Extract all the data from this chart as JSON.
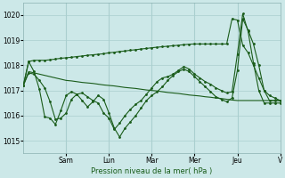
{
  "background_color": "#cce8e8",
  "grid_color": "#aacfcf",
  "line_color": "#1a5c1a",
  "xlabel": "Pression niveau de la mer( hPa )",
  "ylim": [
    1014.5,
    1020.5
  ],
  "yticks": [
    1015,
    1016,
    1017,
    1018,
    1019,
    1020
  ],
  "day_labels": [
    "Sam",
    "Lun",
    "Mar",
    "Mer",
    "Jeu",
    "V"
  ],
  "n_points": 49,
  "series1_high": [
    1017.2,
    1018.15,
    1018.2,
    1018.2,
    1018.2,
    1018.22,
    1018.25,
    1018.28,
    1018.3,
    1018.32,
    1018.35,
    1018.37,
    1018.4,
    1018.42,
    1018.44,
    1018.46,
    1018.5,
    1018.52,
    1018.55,
    1018.57,
    1018.6,
    1018.62,
    1018.65,
    1018.67,
    1018.7,
    1018.72,
    1018.74,
    1018.76,
    1018.78,
    1018.8,
    1018.82,
    1018.84,
    1018.85,
    1018.85,
    1018.85,
    1018.85,
    1018.85,
    1018.85,
    1018.85,
    1019.85,
    1019.8,
    1018.8,
    1018.5,
    1018.0,
    1017.5,
    1017.0,
    1016.8,
    1016.7,
    1016.6
  ],
  "series2_upper": [
    1017.2,
    1017.75,
    1017.7,
    1017.65,
    1017.6,
    1017.55,
    1017.5,
    1017.45,
    1017.4,
    1017.38,
    1017.35,
    1017.32,
    1017.3,
    1017.28,
    1017.25,
    1017.22,
    1017.2,
    1017.18,
    1017.15,
    1017.12,
    1017.1,
    1017.08,
    1017.05,
    1017.02,
    1017.0,
    1016.98,
    1016.95,
    1016.92,
    1016.9,
    1016.88,
    1016.85,
    1016.82,
    1016.8,
    1016.78,
    1016.75,
    1016.73,
    1016.7,
    1016.68,
    1016.65,
    1016.62,
    1016.6,
    1016.6,
    1016.6,
    1016.6,
    1016.6,
    1016.6,
    1016.6,
    1016.6,
    1016.6
  ],
  "series3_wavy": [
    1017.2,
    1018.15,
    1017.75,
    1017.05,
    1015.95,
    1015.9,
    1015.65,
    1016.2,
    1016.8,
    1016.95,
    1016.85,
    1016.6,
    1016.35,
    1016.55,
    1016.8,
    1016.65,
    1016.1,
    1015.5,
    1015.15,
    1015.5,
    1015.75,
    1016.0,
    1016.3,
    1016.6,
    1016.8,
    1016.95,
    1017.15,
    1017.4,
    1017.6,
    1017.75,
    1017.85,
    1017.75,
    1017.55,
    1017.35,
    1017.15,
    1016.95,
    1016.75,
    1016.65,
    1016.55,
    1016.7,
    1017.8,
    1019.85,
    1019.4,
    1018.85,
    1018.0,
    1017.0,
    1016.6,
    1016.6,
    1016.6
  ],
  "series4_decline": [
    1017.2,
    1017.7,
    1017.65,
    1017.4,
    1017.1,
    1016.55,
    1015.85,
    1015.9,
    1016.1,
    1016.65,
    1016.85,
    1016.9,
    1016.75,
    1016.6,
    1016.5,
    1016.1,
    1015.9,
    1015.45,
    1015.7,
    1016.0,
    1016.25,
    1016.45,
    1016.6,
    1016.85,
    1017.1,
    1017.35,
    1017.5,
    1017.55,
    1017.65,
    1017.8,
    1017.95,
    1017.85,
    1017.65,
    1017.5,
    1017.35,
    1017.25,
    1017.1,
    1017.0,
    1016.9,
    1016.95,
    1018.45,
    1020.05,
    1019.35,
    1018.1,
    1017.0,
    1016.5,
    1016.5,
    1016.5,
    1016.5
  ]
}
